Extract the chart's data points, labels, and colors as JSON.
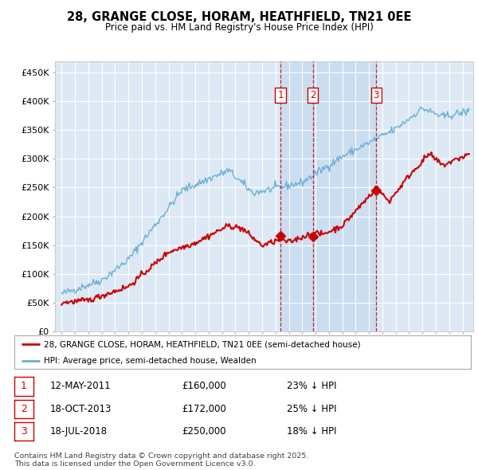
{
  "title": "28, GRANGE CLOSE, HORAM, HEATHFIELD, TN21 0EE",
  "subtitle": "Price paid vs. HM Land Registry's House Price Index (HPI)",
  "legend_line1": "28, GRANGE CLOSE, HORAM, HEATHFIELD, TN21 0EE (semi-detached house)",
  "legend_line2": "HPI: Average price, semi-detached house, Wealden",
  "footer": "Contains HM Land Registry data © Crown copyright and database right 2025.\nThis data is licensed under the Open Government Licence v3.0.",
  "sale_markers": [
    {
      "num": 1,
      "date": "12-MAY-2011",
      "price": 160000,
      "pct": "23% ↓ HPI",
      "x_year": 2011.37
    },
    {
      "num": 2,
      "date": "18-OCT-2013",
      "price": 172000,
      "pct": "25% ↓ HPI",
      "x_year": 2013.8
    },
    {
      "num": 3,
      "date": "18-JUL-2018",
      "price": 250000,
      "pct": "18% ↓ HPI",
      "x_year": 2018.54
    }
  ],
  "hpi_color": "#6baed6",
  "price_color": "#cc0000",
  "marker_box_color": "#cc0000",
  "background_color": "#ffffff",
  "plot_bg_color": "#dce9f5",
  "grid_color": "#ffffff",
  "shade_color": "#d0e4f5",
  "ylim": [
    0,
    470000
  ],
  "xlim_start": 1994.5,
  "xlim_end": 2025.8
}
